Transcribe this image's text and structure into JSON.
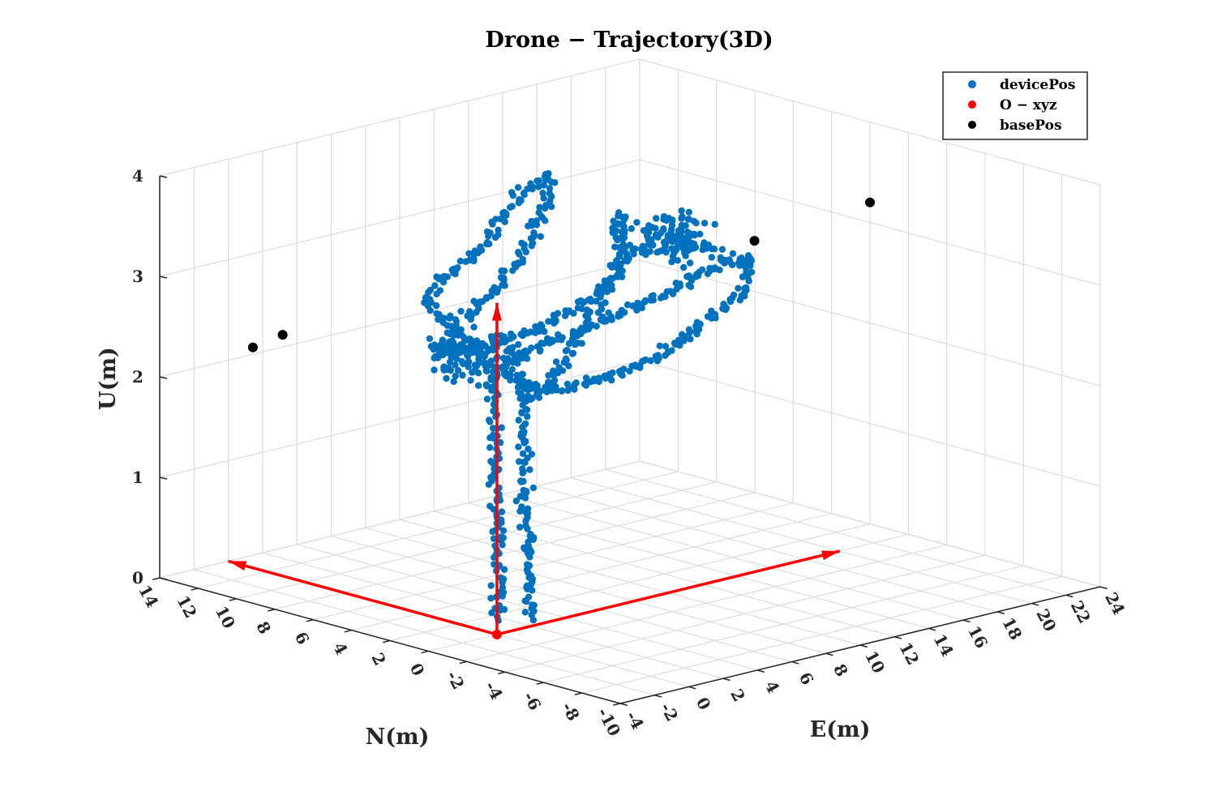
{
  "chart_data": {
    "type": "scatter3d",
    "title": "Drone − Trajectory(3D)",
    "xlabel": "E(m)",
    "ylabel": "N(m)",
    "zlabel": "U(m)",
    "xlim": [
      -4,
      24
    ],
    "ylim": [
      -10,
      14
    ],
    "zlim": [
      0,
      4
    ],
    "x_ticks": [
      -4,
      -2,
      0,
      2,
      4,
      6,
      8,
      10,
      12,
      14,
      16,
      18,
      20,
      22,
      24
    ],
    "y_ticks": [
      -10,
      -8,
      -6,
      -4,
      -2,
      0,
      2,
      4,
      6,
      8,
      10,
      12,
      14
    ],
    "z_ticks": [
      0,
      1,
      2,
      3,
      4
    ],
    "grid": true,
    "legend_position": "top-right",
    "legend": [
      "devicePos",
      "O − xyz",
      "basePos"
    ],
    "colors": {
      "devicePos": "#0072BD",
      "origin": "#FF0000",
      "basePos": "#000000",
      "grid": "#dcdcdc",
      "axis": "#262626"
    },
    "series": [
      {
        "name": "devicePos",
        "description": "approximate sampled trajectory (E, N, U)",
        "segments": [
          [
            [
              -3.8,
              -3.5,
              0.5
            ],
            [
              -3.7,
              -3.4,
              1.0
            ],
            [
              -3.6,
              -3.2,
              1.6
            ],
            [
              -3.5,
              -3.0,
              2.1
            ],
            [
              -3.4,
              -2.9,
              2.6
            ],
            [
              -3.4,
              -2.8,
              2.9
            ]
          ],
          [
            [
              -2.7,
              -4.2,
              0.5
            ],
            [
              -2.6,
              -4.0,
              1.0
            ],
            [
              -2.6,
              -3.8,
              1.6
            ],
            [
              -2.5,
              -3.6,
              2.1
            ],
            [
              -2.4,
              -3.5,
              2.6
            ],
            [
              -2.3,
              -3.4,
              2.9
            ]
          ],
          [
            [
              -3.4,
              -2.8,
              2.9
            ],
            [
              0.0,
              -2.0,
              2.95
            ],
            [
              4.0,
              -1.5,
              3.0
            ],
            [
              8.0,
              -1.0,
              3.05
            ],
            [
              12.0,
              0.0,
              3.1
            ],
            [
              15.0,
              1.5,
              3.0
            ],
            [
              17.0,
              2.5,
              2.85
            ],
            [
              18.5,
              3.5,
              2.8
            ],
            [
              19.0,
              4.0,
              2.75
            ]
          ],
          [
            [
              19.0,
              4.0,
              2.75
            ],
            [
              18.0,
              3.0,
              2.7
            ],
            [
              15.0,
              0.5,
              2.75
            ],
            [
              11.0,
              -1.5,
              2.8
            ],
            [
              7.0,
              -3.0,
              2.75
            ],
            [
              3.0,
              -4.0,
              2.7
            ],
            [
              -1.0,
              -4.2,
              2.7
            ],
            [
              -3.0,
              -4.0,
              2.8
            ]
          ],
          [
            [
              -3.0,
              -4.0,
              2.8
            ],
            [
              -3.5,
              -2.0,
              3.1
            ],
            [
              -3.2,
              0.0,
              3.3
            ],
            [
              -2.5,
              1.5,
              3.35
            ],
            [
              0.0,
              3.0,
              3.35
            ],
            [
              4.0,
              5.0,
              3.3
            ],
            [
              8.0,
              7.5,
              3.25
            ],
            [
              11.5,
              9.5,
              3.3
            ],
            [
              14.0,
              11.0,
              3.3
            ],
            [
              17.0,
              12.5,
              3.2
            ]
          ],
          [
            [
              17.0,
              12.5,
              3.2
            ],
            [
              14.0,
              10.0,
              3.1
            ],
            [
              10.0,
              7.5,
              3.05
            ],
            [
              6.0,
              5.0,
              3.0
            ],
            [
              2.0,
              3.0,
              3.0
            ],
            [
              -1.0,
              1.5,
              2.95
            ],
            [
              -3.0,
              0.5,
              2.9
            ]
          ],
          [
            [
              -3.0,
              0.5,
              2.9
            ],
            [
              1.0,
              1.0,
              2.8
            ],
            [
              5.0,
              2.0,
              2.75
            ],
            [
              9.0,
              3.5,
              2.75
            ],
            [
              13.0,
              5.5,
              2.7
            ],
            [
              16.0,
              7.5,
              2.7
            ],
            [
              18.0,
              9.5,
              2.75
            ],
            [
              19.5,
              11.0,
              2.8
            ]
          ],
          [
            [
              19.5,
              11.0,
              2.8
            ],
            [
              16.0,
              8.0,
              2.65
            ],
            [
              12.0,
              5.0,
              2.65
            ],
            [
              8.0,
              2.5,
              2.6
            ],
            [
              4.0,
              0.0,
              2.6
            ],
            [
              0.0,
              -2.5,
              2.55
            ],
            [
              -2.5,
              -3.5,
              2.6
            ]
          ]
        ]
      },
      {
        "name": "O − xyz",
        "origin": [
          0,
          0,
          0
        ],
        "vectors": [
          [
            20,
            0,
            0
          ],
          [
            0,
            14,
            0
          ],
          [
            0,
            0,
            3.3
          ]
        ]
      },
      {
        "name": "basePos",
        "points": [
          [
            -12.5,
            0.0,
            3.5
          ],
          [
            -12.0,
            2.0,
            3.25
          ],
          [
            24.0,
            2.0,
            3.2
          ],
          [
            19.5,
            4.0,
            2.9
          ]
        ]
      }
    ]
  }
}
